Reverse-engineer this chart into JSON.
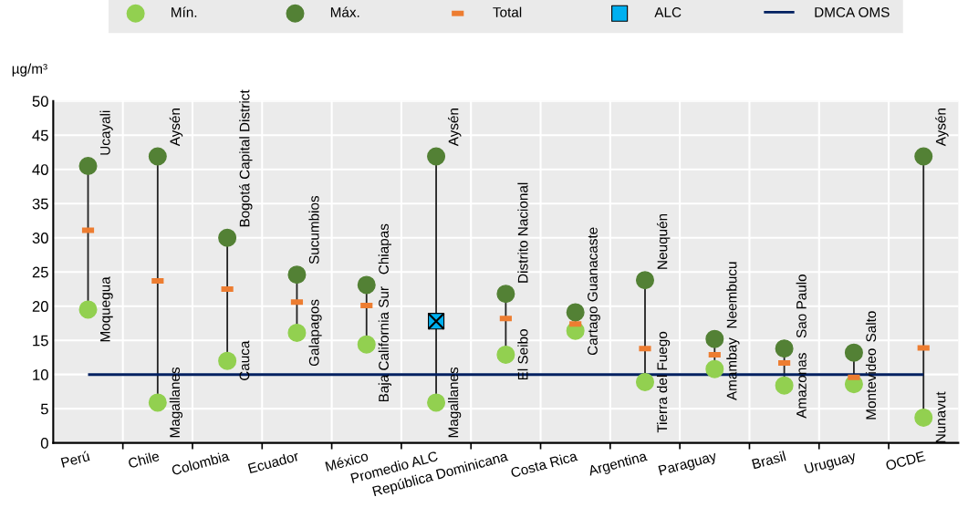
{
  "chart_data": {
    "type": "scatter",
    "ylabel": "µg/m³",
    "categories": [
      "Perú",
      "Chile",
      "Colombia",
      "Ecuador",
      "México",
      "Promedio ALC",
      "República Dominicana",
      "Costa Rica",
      "Argentina",
      "Paraguay",
      "Brasil",
      "Uruguay",
      "OCDE"
    ],
    "series": [
      {
        "name": "Mín.",
        "color": "#92d050",
        "marker": "circle",
        "values": [
          19.5,
          5.9,
          12.0,
          16.1,
          14.4,
          5.9,
          12.9,
          16.4,
          8.9,
          10.8,
          8.4,
          8.6,
          3.7
        ]
      },
      {
        "name": "Máx.",
        "color": "#538135",
        "marker": "circle",
        "values": [
          40.5,
          41.9,
          30.0,
          24.6,
          23.1,
          41.9,
          21.8,
          19.1,
          23.8,
          15.2,
          13.8,
          13.2,
          41.9
        ]
      },
      {
        "name": "Total",
        "color": "#ed7d31",
        "marker": "square",
        "values": [
          31.1,
          23.7,
          22.5,
          20.6,
          20.1,
          null,
          18.2,
          17.4,
          13.8,
          12.9,
          11.7,
          9.6,
          13.9
        ]
      },
      {
        "name": "ALC",
        "color": "#00b0f0",
        "marker": "square",
        "values": [
          null,
          null,
          null,
          null,
          null,
          17.8,
          null,
          null,
          null,
          null,
          null,
          null,
          null
        ]
      }
    ],
    "ref_lines": [
      {
        "axis": "y",
        "value": 10,
        "label": "DMCA OMS",
        "color": "#002060",
        "line_style": "solid"
      }
    ],
    "annotations": [
      {
        "text": "Ucayali",
        "x": "Perú",
        "y": 40.5
      },
      {
        "text": "Moquegua",
        "x": "Perú",
        "y": 19.5
      },
      {
        "text": "Aysén",
        "x": "Chile",
        "y": 41.9
      },
      {
        "text": "Magallanes",
        "x": "Chile",
        "y": 5.9
      },
      {
        "text": "Bogotá Capital District",
        "x": "Colombia",
        "y": 30.0
      },
      {
        "text": "Cauca",
        "x": "Colombia",
        "y": 12.0
      },
      {
        "text": "Sucumbios",
        "x": "Ecuador",
        "y": 24.6
      },
      {
        "text": "Galapagos",
        "x": "Ecuador",
        "y": 16.1
      },
      {
        "text": "Chiapas",
        "x": "México",
        "y": 23.1
      },
      {
        "text": "Baja California Sur",
        "x": "México",
        "y": 14.4
      },
      {
        "text": "Aysén",
        "x": "Promedio ALC",
        "y": 41.9
      },
      {
        "text": "Magallanes",
        "x": "Promedio ALC",
        "y": 5.9
      },
      {
        "text": "Distrito Nacional",
        "x": "República Dominicana",
        "y": 21.8
      },
      {
        "text": "El Seibo",
        "x": "República Dominicana",
        "y": 12.9
      },
      {
        "text": "Guanacaste",
        "x": "Costa Rica",
        "y": 19.1
      },
      {
        "text": "Cartago",
        "x": "Costa Rica",
        "y": 16.4
      },
      {
        "text": "Neuquén",
        "x": "Argentina",
        "y": 23.8
      },
      {
        "text": "Tierra del Fuego",
        "x": "Argentina",
        "y": 8.9
      },
      {
        "text": "Neembucu",
        "x": "Paraguay",
        "y": 15.2
      },
      {
        "text": "Amambay",
        "x": "Paraguay",
        "y": 10.8
      },
      {
        "text": "Sao Paulo",
        "x": "Brasil",
        "y": 13.8
      },
      {
        "text": "Amazonas",
        "x": "Brasil",
        "y": 8.4
      },
      {
        "text": "Salto",
        "x": "Uruguay",
        "y": 13.2
      },
      {
        "text": "Montevideo",
        "x": "Uruguay",
        "y": 8.6
      },
      {
        "text": "Aysén",
        "x": "OCDE",
        "y": 41.9
      },
      {
        "text": "Nunavut",
        "x": "OCDE",
        "y": 3.7
      }
    ],
    "ylim": [
      0,
      50
    ],
    "yticks": [
      0,
      5,
      10,
      15,
      20,
      25,
      30,
      35,
      40,
      45,
      50
    ],
    "grid": true,
    "legend": "top"
  }
}
